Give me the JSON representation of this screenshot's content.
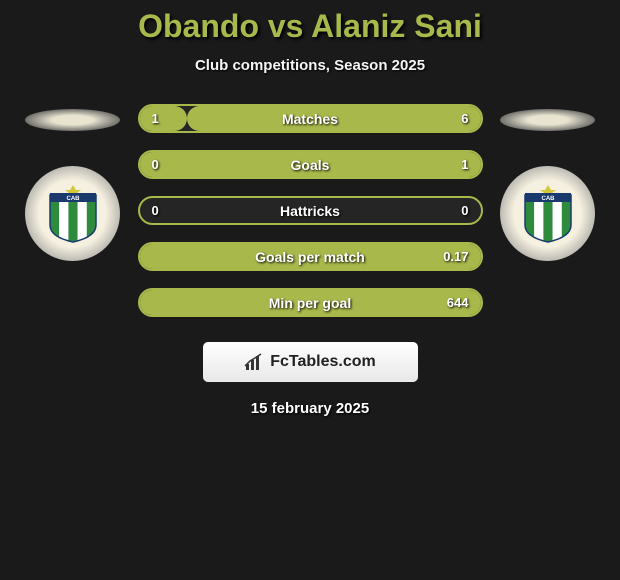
{
  "title": "Obando vs Alaniz Sani",
  "subtitle": "Club competitions, Season 2025",
  "footer_brand": "FcTables.com",
  "date": "15 february 2025",
  "colors": {
    "background": "#1a1a1a",
    "title_color": "#a8b84a",
    "left_accent": "#a8b84a",
    "right_accent": "#a8b84a",
    "bar_bg": "#252525",
    "text": "#ffffff",
    "ellipse": "#e8e4d0"
  },
  "stats": [
    {
      "label": "Matches",
      "left_val": "1",
      "right_val": "6",
      "left_pct": 14,
      "right_pct": 86
    },
    {
      "label": "Goals",
      "left_val": "0",
      "right_val": "1",
      "left_pct": 0,
      "right_pct": 100
    },
    {
      "label": "Hattricks",
      "left_val": "0",
      "right_val": "0",
      "left_pct": 0,
      "right_pct": 0
    },
    {
      "label": "Goals per match",
      "left_val": "",
      "right_val": "0.17",
      "left_pct": 0,
      "right_pct": 100
    },
    {
      "label": "Min per goal",
      "left_val": "",
      "right_val": "644",
      "left_pct": 0,
      "right_pct": 100
    }
  ],
  "badge": {
    "shield_stripes": [
      "#2e8b3e",
      "#ffffff",
      "#2e8b3e",
      "#ffffff",
      "#2e8b3e"
    ],
    "star_color": "#d4c838",
    "text": "CAB"
  }
}
